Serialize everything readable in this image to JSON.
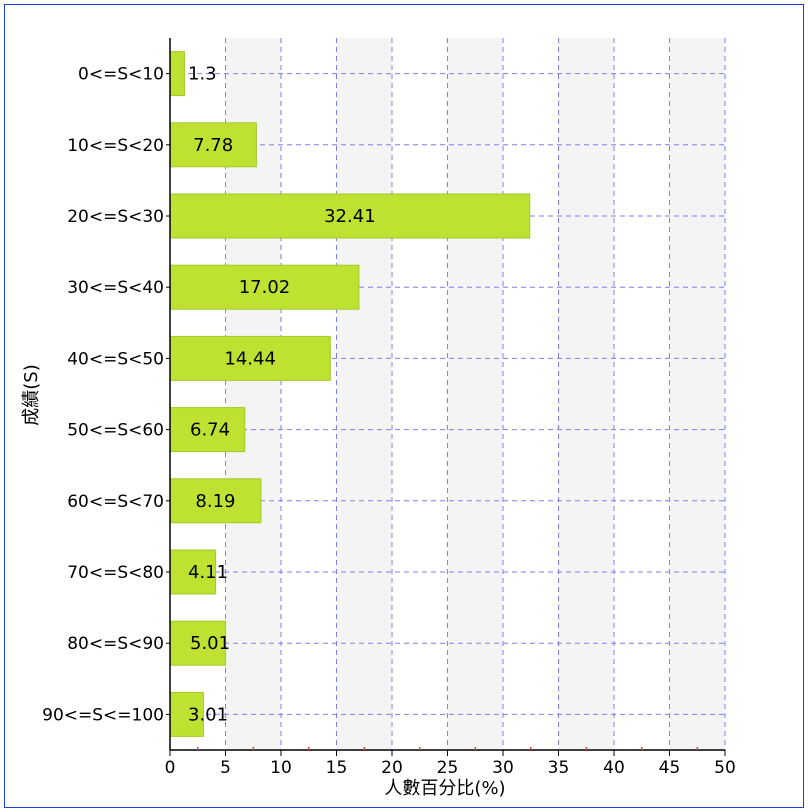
{
  "chart_data": {
    "type": "bar",
    "orientation": "horizontal",
    "categories": [
      "0<=S<10",
      "10<=S<20",
      "20<=S<30",
      "30<=S<40",
      "40<=S<50",
      "50<=S<60",
      "60<=S<70",
      "70<=S<80",
      "80<=S<90",
      "90<=S<=100"
    ],
    "values": [
      1.3,
      7.78,
      32.41,
      17.02,
      14.44,
      6.74,
      8.19,
      4.11,
      5.01,
      3.01
    ],
    "value_labels": [
      "1.3",
      "7.78",
      "32.41",
      "17.02",
      "14.44",
      "6.74",
      "8.19",
      "4.11",
      "5.01",
      "3.01"
    ],
    "title": "",
    "xlabel": "人數百分比(%)",
    "ylabel": "成績(S)",
    "xlim": [
      0,
      50
    ],
    "xticks": [
      0,
      5,
      10,
      15,
      20,
      25,
      30,
      35,
      40,
      45,
      50
    ],
    "grid": true,
    "legend": "none",
    "colors": {
      "bar_fill": "#bde232",
      "bar_stroke": "#a3c82a",
      "grid": "#7f7ff0",
      "band": "#f4f4f4",
      "border": "#1f3fd6",
      "minor_tick": "#e04a3a"
    }
  }
}
